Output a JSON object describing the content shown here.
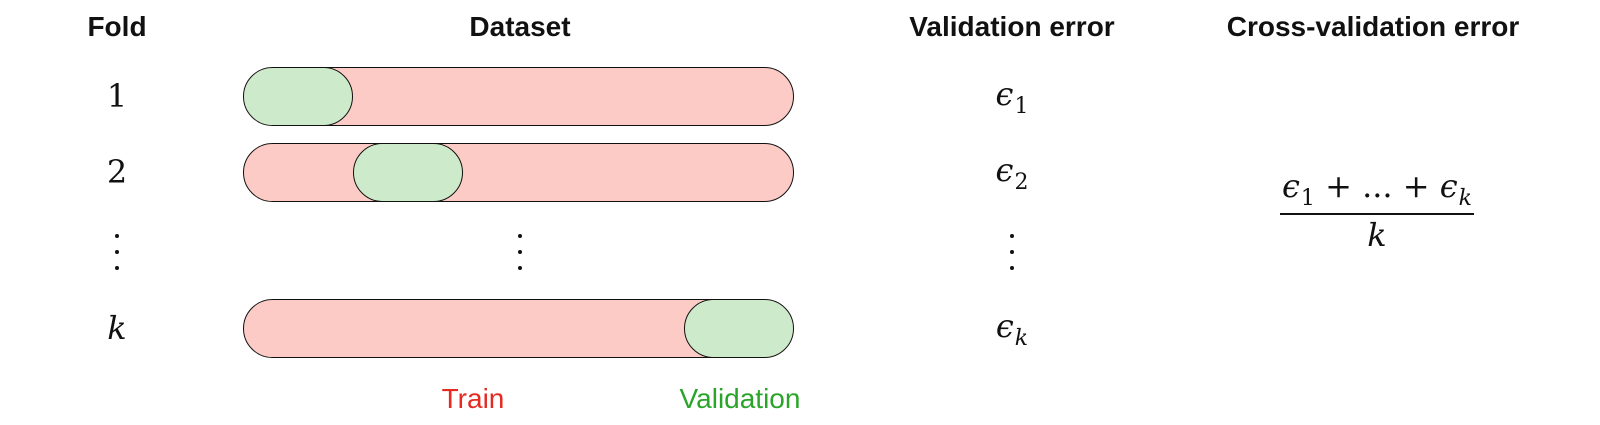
{
  "headers": {
    "fold": "Fold",
    "dataset": "Dataset",
    "validation_error": "Validation error",
    "cross_validation_error": "Cross-validation error"
  },
  "rows": [
    {
      "fold": "1",
      "error_symbol": "ϵ",
      "error_sub": "1",
      "validation_fold_index": 1
    },
    {
      "fold": "2",
      "error_symbol": "ϵ",
      "error_sub": "2",
      "validation_fold_index": 2
    },
    {
      "fold": "k",
      "error_symbol": "ϵ",
      "error_sub": "k",
      "validation_fold_index": 5
    }
  ],
  "folds_drawn_per_bar": 5,
  "formula": {
    "numerator": "ϵ1 + ... + ϵk",
    "denominator": "k"
  },
  "legend": {
    "train": "Train",
    "validation": "Validation"
  },
  "colors": {
    "train_fill": "#fccbc6",
    "validation_fill": "#cdebcb",
    "train_label": "#e32b22",
    "validation_label": "#2aa52a",
    "stroke": "#111111"
  }
}
